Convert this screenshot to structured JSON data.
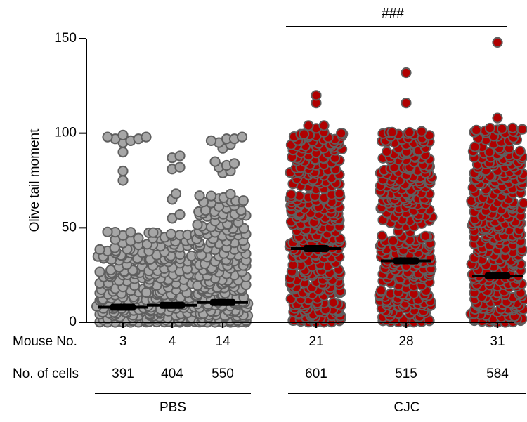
{
  "chart_data": {
    "type": "scatter",
    "subtype": "dot-plot (beeswarm) with median line",
    "title": "",
    "ylabel": "Olive tail moment",
    "xlabel": "",
    "ylim": [
      0,
      150
    ],
    "yticks": [
      0,
      50,
      100,
      150
    ],
    "grid": false,
    "legend": "none",
    "row_labels": {
      "mouse": "Mouse No.",
      "cells": "No. of cells"
    },
    "groups": [
      {
        "name": "PBS",
        "members": [
          0,
          1,
          2
        ]
      },
      {
        "name": "CJC",
        "members": [
          3,
          4,
          5
        ]
      }
    ],
    "significance": {
      "label": "###",
      "from": 3,
      "to": 5
    },
    "colors": {
      "pbs_fill": "#a6a6a6",
      "cjc_fill": "#b00000",
      "marker_edge": "#5f5f5f",
      "median": "#000000",
      "axis": "#000000"
    },
    "series": [
      {
        "mouse": "3",
        "cells": "391",
        "group": "PBS",
        "median": 8,
        "shown_points": 140,
        "max_bulk": 48,
        "outliers": [
          97,
          98,
          98,
          97,
          96,
          99,
          95,
          90,
          80,
          75
        ]
      },
      {
        "mouse": "4",
        "cells": "404",
        "group": "PBS",
        "median": 9,
        "shown_points": 150,
        "max_bulk": 48,
        "outliers": [
          88,
          87,
          82,
          81,
          68,
          65,
          57,
          55,
          45,
          43
        ]
      },
      {
        "mouse": "14",
        "cells": "550",
        "group": "PBS",
        "median": 10.5,
        "shown_points": 230,
        "max_bulk": 68,
        "outliers": [
          98,
          97,
          96,
          94,
          92,
          95,
          97,
          85,
          83,
          80,
          79,
          82,
          84
        ]
      },
      {
        "mouse": "21",
        "cells": "601",
        "group": "CJC",
        "median": 39,
        "shown_points": 330,
        "max_bulk": 103,
        "outliers": [
          120,
          116,
          104,
          104
        ]
      },
      {
        "mouse": "28",
        "cells": "515",
        "group": "CJC",
        "median": 32.5,
        "shown_points": 320,
        "max_bulk": 101,
        "outliers": [
          132,
          116
        ]
      },
      {
        "mouse": "31",
        "cells": "584",
        "group": "CJC",
        "median": 24.5,
        "shown_points": 310,
        "max_bulk": 103,
        "outliers": [
          148,
          108
        ]
      }
    ]
  }
}
